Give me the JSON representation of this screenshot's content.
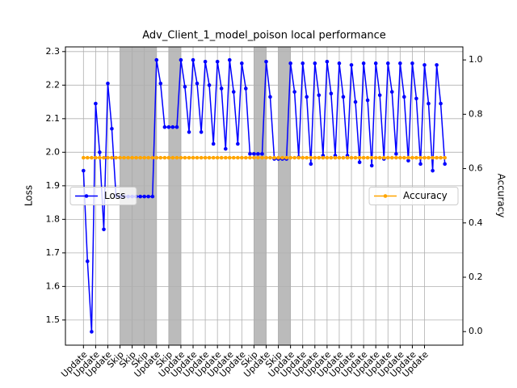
{
  "chart_data": {
    "type": "line",
    "title": "Adv_Client_1_model_poison local performance",
    "ylabel": "Loss",
    "y2label": "Accuracy",
    "x": [
      0,
      0.33,
      0.67,
      1,
      1.33,
      1.67,
      2,
      2.33,
      2.67,
      3,
      3.33,
      3.67,
      4,
      4.33,
      4.67,
      5,
      5.33,
      5.67,
      6,
      6.33,
      6.67,
      7,
      7.33,
      7.67,
      8,
      8.33,
      8.67,
      9,
      9.33,
      9.67,
      10,
      10.33,
      10.67,
      11,
      11.33,
      11.67,
      12,
      12.33,
      12.67,
      13,
      13.33,
      13.67,
      14,
      14.33,
      14.67,
      15,
      15.33,
      15.67,
      16,
      16.33,
      16.67,
      17,
      17.33,
      17.67,
      18,
      18.33,
      18.67,
      19,
      19.33,
      19.67,
      20,
      20.33,
      20.67,
      21,
      21.33,
      21.67,
      22,
      22.33,
      22.67,
      23,
      23.33,
      23.67,
      24,
      24.33,
      24.67,
      25,
      25.33,
      25.67,
      26,
      26.33,
      26.67,
      27,
      27.33,
      27.67,
      28,
      28.33,
      28.67,
      29,
      29.33,
      29.67
    ],
    "series": [
      {
        "name": "Loss",
        "color": "#0000ff",
        "axis": "y",
        "legend": "center left",
        "values": [
          1.945,
          1.675,
          1.465,
          2.145,
          2.0,
          1.77,
          2.205,
          2.07,
          1.87,
          1.868,
          1.868,
          1.868,
          1.868,
          1.868,
          1.868,
          1.868,
          1.868,
          1.868,
          2.275,
          2.205,
          2.075,
          2.075,
          2.075,
          2.075,
          2.275,
          2.195,
          2.06,
          2.275,
          2.205,
          2.06,
          2.27,
          2.2,
          2.025,
          2.27,
          2.19,
          2.01,
          2.275,
          2.18,
          2.025,
          2.265,
          2.19,
          1.995,
          1.995,
          1.995,
          1.995,
          2.27,
          2.165,
          1.98,
          1.98,
          1.98,
          1.98,
          2.265,
          2.18,
          1.985,
          2.265,
          2.165,
          1.965,
          2.265,
          2.17,
          1.99,
          2.27,
          2.175,
          1.99,
          2.265,
          2.165,
          1.99,
          2.26,
          2.15,
          1.97,
          2.265,
          2.155,
          1.96,
          2.265,
          2.17,
          1.98,
          2.265,
          2.18,
          1.995,
          2.265,
          2.165,
          1.975,
          2.265,
          2.16,
          1.965,
          2.26,
          2.145,
          1.945,
          2.26,
          2.145,
          1.965
        ]
      },
      {
        "name": "Accuracy",
        "color": "#ffa500",
        "axis": "y2",
        "legend": "center right",
        "values": [
          0.64,
          0.64,
          0.64,
          0.64,
          0.64,
          0.64,
          0.64,
          0.64,
          0.64,
          0.64,
          0.64,
          0.64,
          0.64,
          0.64,
          0.64,
          0.64,
          0.64,
          0.64,
          0.64,
          0.64,
          0.64,
          0.64,
          0.64,
          0.64,
          0.64,
          0.64,
          0.64,
          0.64,
          0.64,
          0.64,
          0.64,
          0.64,
          0.64,
          0.64,
          0.64,
          0.64,
          0.64,
          0.64,
          0.64,
          0.64,
          0.64,
          0.64,
          0.64,
          0.64,
          0.64,
          0.64,
          0.64,
          0.64,
          0.64,
          0.64,
          0.64,
          0.64,
          0.64,
          0.64,
          0.64,
          0.64,
          0.64,
          0.64,
          0.64,
          0.64,
          0.64,
          0.64,
          0.64,
          0.64,
          0.64,
          0.64,
          0.64,
          0.64,
          0.64,
          0.64,
          0.64,
          0.64,
          0.64,
          0.64,
          0.64,
          0.64,
          0.64,
          0.64,
          0.64,
          0.64,
          0.64,
          0.64,
          0.64,
          0.64,
          0.64,
          0.64,
          0.64,
          0.64,
          0.64,
          0.64
        ]
      }
    ],
    "shaded_spans": [
      [
        3,
        4
      ],
      [
        4,
        5
      ],
      [
        5,
        6
      ],
      [
        7,
        8
      ],
      [
        14,
        15
      ],
      [
        16,
        17
      ]
    ],
    "shade_color": "#bbbbbb",
    "xlim": [
      -1.48,
      31.15
    ],
    "xticks": [
      {
        "value": 0,
        "label": "Update"
      },
      {
        "value": 1,
        "label": "Update"
      },
      {
        "value": 2,
        "label": "Update"
      },
      {
        "value": 3,
        "label": "Skip"
      },
      {
        "value": 4,
        "label": "Skip"
      },
      {
        "value": 5,
        "label": "Skip"
      },
      {
        "value": 6,
        "label": "Update"
      },
      {
        "value": 7,
        "label": "Skip"
      },
      {
        "value": 8,
        "label": "Update"
      },
      {
        "value": 9,
        "label": "Update"
      },
      {
        "value": 10,
        "label": "Update"
      },
      {
        "value": 11,
        "label": "Update"
      },
      {
        "value": 12,
        "label": "Update"
      },
      {
        "value": 13,
        "label": "Update"
      },
      {
        "value": 14,
        "label": "Skip"
      },
      {
        "value": 15,
        "label": "Update"
      },
      {
        "value": 16,
        "label": "Skip"
      },
      {
        "value": 17,
        "label": "Update"
      },
      {
        "value": 18,
        "label": "Update"
      },
      {
        "value": 19,
        "label": "Update"
      },
      {
        "value": 20,
        "label": "Update"
      },
      {
        "value": 21,
        "label": "Update"
      },
      {
        "value": 22,
        "label": "Update"
      },
      {
        "value": 23,
        "label": "Update"
      },
      {
        "value": 24,
        "label": "Update"
      },
      {
        "value": 25,
        "label": "Update"
      },
      {
        "value": 26,
        "label": "Update"
      },
      {
        "value": 27,
        "label": "Update"
      },
      {
        "value": 28,
        "label": "Update"
      }
    ],
    "ylim": [
      1.425,
      2.314
    ],
    "yticks": [
      1.5,
      1.6,
      1.7,
      1.8,
      1.9,
      {
        "value": 2,
        "label": "2.0"
      },
      2.1,
      2.2,
      2.3
    ],
    "y2lim": [
      -0.05,
      1.048
    ],
    "y2ticks": [
      {
        "value": 0,
        "label": "0.0"
      },
      0.2,
      0.4,
      0.6,
      0.8,
      {
        "value": 1,
        "label": "1.0"
      }
    ],
    "grid": true
  }
}
